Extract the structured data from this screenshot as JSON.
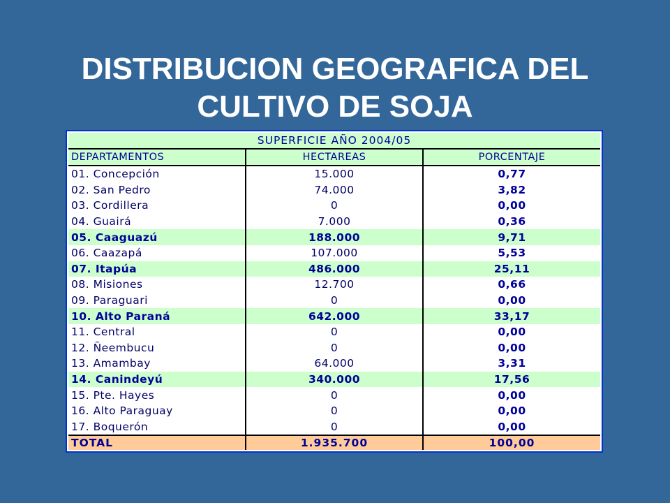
{
  "title": {
    "line1": "DISTRIBUCION GEOGRAFICA DEL",
    "line2": "CULTIVO DE SOJA"
  },
  "table": {
    "super_header": "SUPERFICIE AÑO 2004/05",
    "columns": [
      "DEPARTAMENTOS",
      "HECTAREAS",
      "PORCENTAJE"
    ],
    "rows": [
      {
        "departamento": "01. Concepción",
        "hectareas": "15.000",
        "porcentaje": "0,77",
        "highlight": false
      },
      {
        "departamento": "02. San Pedro",
        "hectareas": "74.000",
        "porcentaje": "3,82",
        "highlight": false
      },
      {
        "departamento": "03. Cordillera",
        "hectareas": "0",
        "porcentaje": "0,00",
        "highlight": false
      },
      {
        "departamento": "04. Guairá",
        "hectareas": "7.000",
        "porcentaje": "0,36",
        "highlight": false
      },
      {
        "departamento": "05. Caaguazú",
        "hectareas": "188.000",
        "porcentaje": "9,71",
        "highlight": true
      },
      {
        "departamento": "06. Caazapá",
        "hectareas": "107.000",
        "porcentaje": "5,53",
        "highlight": false
      },
      {
        "departamento": "07. Itapúa",
        "hectareas": "486.000",
        "porcentaje": "25,11",
        "highlight": true
      },
      {
        "departamento": "08. Misiones",
        "hectareas": "12.700",
        "porcentaje": "0,66",
        "highlight": false
      },
      {
        "departamento": "09. Paraguari",
        "hectareas": "0",
        "porcentaje": "0,00",
        "highlight": false
      },
      {
        "departamento": "10. Alto Paraná",
        "hectareas": "642.000",
        "porcentaje": "33,17",
        "highlight": true
      },
      {
        "departamento": "11. Central",
        "hectareas": "0",
        "porcentaje": "0,00",
        "highlight": false
      },
      {
        "departamento": "12. Ñeembucu",
        "hectareas": "0",
        "porcentaje": "0,00",
        "highlight": false
      },
      {
        "departamento": "13. Amambay",
        "hectareas": "64.000",
        "porcentaje": "3,31",
        "highlight": false
      },
      {
        "departamento": "14. Canindeyú",
        "hectareas": "340.000",
        "porcentaje": "17,56",
        "highlight": true
      },
      {
        "departamento": "15. Pte. Hayes",
        "hectareas": "0",
        "porcentaje": "0,00",
        "highlight": false
      },
      {
        "departamento": "16. Alto Paraguay",
        "hectareas": "0",
        "porcentaje": "0,00",
        "highlight": false
      },
      {
        "departamento": "17. Boquerón",
        "hectareas": "0",
        "porcentaje": "0,00",
        "highlight": false
      }
    ],
    "total": {
      "label": "TOTAL",
      "hectareas": "1.935.700",
      "porcentaje": "100,00"
    }
  },
  "colors": {
    "background": "#336699",
    "highlight_row": "#ccffcc",
    "total_row": "#ffcc99",
    "text": "#000099"
  }
}
